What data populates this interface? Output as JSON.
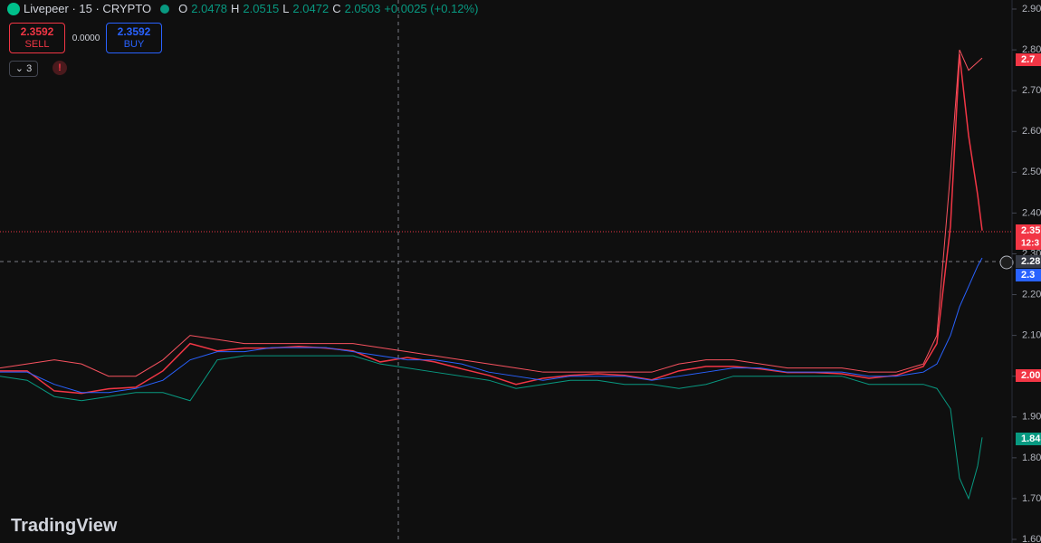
{
  "header": {
    "symbol": "Livepeer · 15 · CRYPTO",
    "o_key": "O",
    "o": "2.0478",
    "h_key": "H",
    "h": "2.0515",
    "l_key": "L",
    "l": "2.0472",
    "c_key": "C",
    "c": "2.0503",
    "change": "+0.0025 (+0.12%)"
  },
  "trade": {
    "sell_price": "2.3592",
    "sell": "SELL",
    "spread": "0.0000",
    "buy_price": "2.3592",
    "buy": "BUY",
    "indicators": "3"
  },
  "axis_badges": [
    "2.7",
    "2.35",
    "12:3",
    "2.28",
    "2.3",
    "2.00",
    "1.84"
  ],
  "logo": "TradingView",
  "chart_data": {
    "type": "line",
    "xlim": [
      0,
      1100
    ],
    "ylim": [
      1.6,
      2.9
    ],
    "yticks": [
      {
        "value": 1.6,
        "label": "1.60"
      },
      {
        "value": 1.7,
        "label": "1.70"
      },
      {
        "value": 1.8,
        "label": "1.80"
      },
      {
        "value": 1.9,
        "label": "1.90"
      },
      {
        "value": 2.0,
        "label": "2.00"
      },
      {
        "value": 2.1,
        "label": "2.10"
      },
      {
        "value": 2.2,
        "label": "2.20"
      },
      {
        "value": 2.3,
        "label": "2.30"
      },
      {
        "value": 2.4,
        "label": "2.40"
      },
      {
        "value": 2.5,
        "label": "2.50"
      },
      {
        "value": 2.6,
        "label": "2.60"
      },
      {
        "value": 2.7,
        "label": "2.70"
      },
      {
        "value": 2.8,
        "label": "2.80"
      },
      {
        "value": 2.9,
        "label": "2.90"
      }
    ],
    "x": [
      0,
      30,
      60,
      90,
      120,
      150,
      180,
      210,
      240,
      270,
      300,
      330,
      360,
      390,
      420,
      450,
      480,
      510,
      540,
      570,
      600,
      630,
      660,
      690,
      720,
      750,
      780,
      810,
      840,
      870,
      900,
      930,
      960,
      990,
      1020,
      1035,
      1050,
      1060,
      1070,
      1080,
      1085
    ],
    "series": [
      {
        "color": "#f23645",
        "values": [
          2.013,
          2.013,
          1.964,
          1.958,
          1.969,
          1.973,
          2.013,
          2.08,
          2.062,
          2.069,
          2.069,
          2.073,
          2.069,
          2.062,
          2.035,
          2.046,
          2.035,
          2.018,
          2.002,
          1.98,
          1.995,
          2.002,
          2.006,
          2.002,
          1.991,
          2.013,
          2.024,
          2.024,
          2.018,
          2.009,
          2.009,
          2.006,
          1.995,
          2.002,
          2.024,
          2.08,
          2.368,
          2.789,
          2.59,
          2.445,
          2.357
        ]
      },
      {
        "color": "#f7525f",
        "values": [
          2.02,
          2.03,
          2.04,
          2.03,
          2.0,
          2.0,
          2.04,
          2.1,
          2.09,
          2.08,
          2.08,
          2.08,
          2.08,
          2.08,
          2.07,
          2.06,
          2.05,
          2.04,
          2.03,
          2.02,
          2.01,
          2.01,
          2.01,
          2.01,
          2.01,
          2.03,
          2.04,
          2.04,
          2.03,
          2.02,
          2.02,
          2.02,
          2.01,
          2.01,
          2.03,
          2.1,
          2.5,
          2.8,
          2.75,
          2.77,
          2.78
        ]
      },
      {
        "color": "#089981",
        "values": [
          2.0,
          1.99,
          1.95,
          1.94,
          1.95,
          1.96,
          1.96,
          1.94,
          2.04,
          2.05,
          2.05,
          2.05,
          2.05,
          2.05,
          2.03,
          2.02,
          2.01,
          2.0,
          1.99,
          1.97,
          1.98,
          1.99,
          1.99,
          1.98,
          1.98,
          1.97,
          1.98,
          2.0,
          2.0,
          2.0,
          2.0,
          2.0,
          1.98,
          1.98,
          1.98,
          1.97,
          1.92,
          1.75,
          1.7,
          1.78,
          1.85
        ]
      },
      {
        "color": "#2962ff",
        "values": [
          2.01,
          2.01,
          1.98,
          1.96,
          1.96,
          1.97,
          1.99,
          2.04,
          2.06,
          2.06,
          2.07,
          2.07,
          2.07,
          2.06,
          2.05,
          2.04,
          2.04,
          2.03,
          2.01,
          2.0,
          1.99,
          2.0,
          2.0,
          2.0,
          1.99,
          2.0,
          2.01,
          2.02,
          2.02,
          2.01,
          2.01,
          2.01,
          2.0,
          2.0,
          2.01,
          2.03,
          2.1,
          2.17,
          2.22,
          2.27,
          2.29
        ]
      }
    ]
  }
}
